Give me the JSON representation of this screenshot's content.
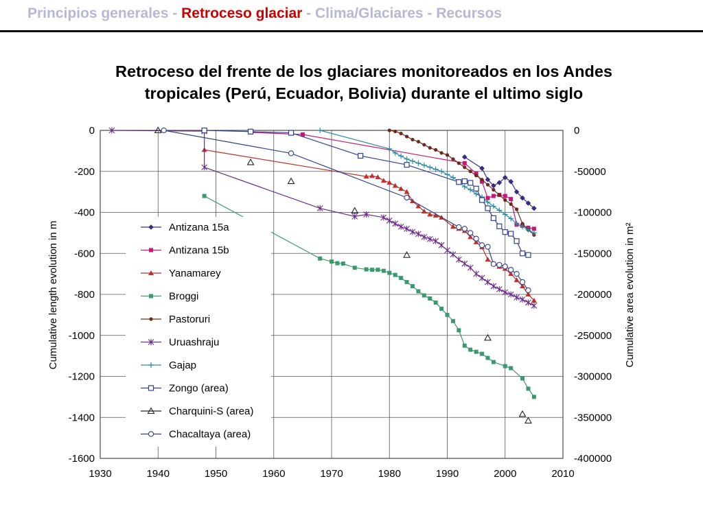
{
  "nav": {
    "item1": "Principios generales -",
    "item2": "Retroceso glaciar",
    "item3": " - Clima/Glaciares - Recursos"
  },
  "title_line1": "Retroceso del frente de los glaciares monitoreados en los Andes",
  "title_line2": "tropicales (Perú, Ecuador, Bolivia) durante  el ultimo siglo",
  "colors": {
    "nav_inactive": "#b7b7d6",
    "nav_active": "#cc0000",
    "antizana15a": "#3b2a82",
    "antizana15b": "#c8157b",
    "yanamarey": "#c0302a",
    "broggi": "#3a9a6e",
    "pastoruri": "#6b2a1a",
    "uruashraju": "#6a2a8a",
    "gajap": "#2a8aa0",
    "zongo": "#2e3f8f",
    "charquini": "#222222",
    "chacaltaya": "#2e3f8f"
  },
  "chart_data": {
    "type": "scatter",
    "xlabel": "",
    "ylabel_left": "Cumulative length evolution in m",
    "ylabel_right": "Cumulative area evolution in m²",
    "xlim": [
      1930,
      2010
    ],
    "ylim_left": [
      -1600,
      0
    ],
    "ylim_right": [
      -400000,
      0
    ],
    "x_ticks": [
      1930,
      1940,
      1950,
      1960,
      1970,
      1980,
      1990,
      2000,
      2010
    ],
    "y_ticks_left": [
      0,
      -200,
      -400,
      -600,
      -800,
      -1000,
      -1200,
      -1400,
      -1600
    ],
    "y_ticks_right": [
      "0",
      "-50000",
      "-100000",
      "-150000",
      "-200000",
      "-250000",
      "-300000",
      "-350000",
      "-400000"
    ],
    "legend_position": "left",
    "series": [
      {
        "name": "Antizana 15a",
        "axis": "left",
        "marker": "diamond",
        "line": true,
        "x": [
          1993,
          1996,
          1997,
          1998,
          1999,
          2000,
          2001,
          2002,
          2003,
          2004,
          2005
        ],
        "y": [
          -130,
          -185,
          -240,
          -270,
          -255,
          -230,
          -250,
          -300,
          -330,
          -355,
          -380
        ]
      },
      {
        "name": "Antizana 15b",
        "axis": "left",
        "marker": "square-filled",
        "line": true,
        "x": [
          1956,
          1965,
          1993,
          1995,
          1996,
          1997,
          1998,
          1999,
          2000,
          2001,
          2002,
          2003,
          2004,
          2005
        ],
        "y": [
          -10,
          -20,
          -160,
          -210,
          -250,
          -330,
          -320,
          -315,
          -320,
          -335,
          -460,
          -465,
          -475,
          -480
        ]
      },
      {
        "name": "Yanamarey",
        "axis": "left",
        "marker": "triangle-filled",
        "line": true,
        "x": [
          1948,
          1976,
          1977,
          1978,
          1979,
          1980,
          1981,
          1982,
          1983,
          1984,
          1985,
          1986,
          1987,
          1988,
          1989,
          1991,
          1992,
          1993,
          1994,
          1995,
          1996,
          1997,
          1998,
          1999,
          2000,
          2001,
          2002,
          2003,
          2004,
          2005
        ],
        "y": [
          -95,
          -225,
          -222,
          -228,
          -245,
          -255,
          -270,
          -285,
          -300,
          -345,
          -370,
          -395,
          -410,
          -415,
          -425,
          -470,
          -480,
          -490,
          -520,
          -545,
          -570,
          -630,
          -650,
          -665,
          -675,
          -700,
          -730,
          -760,
          -800,
          -830
        ]
      },
      {
        "name": "Broggi",
        "axis": "left",
        "marker": "square-filled",
        "line": true,
        "x": [
          1948,
          1968,
          1970,
          1971,
          1972,
          1974,
          1976,
          1977,
          1978,
          1979,
          1980,
          1981,
          1982,
          1983,
          1984,
          1985,
          1986,
          1987,
          1988,
          1989,
          1990,
          1991,
          1992,
          1993,
          1994,
          1995,
          1996,
          1997,
          1998,
          2000,
          2001,
          2003,
          2004,
          2005
        ],
        "y": [
          -320,
          -625,
          -640,
          -648,
          -650,
          -670,
          -678,
          -680,
          -680,
          -685,
          -695,
          -705,
          -720,
          -740,
          -760,
          -785,
          -805,
          -820,
          -840,
          -870,
          -900,
          -930,
          -975,
          -1050,
          -1070,
          -1080,
          -1090,
          -1110,
          -1130,
          -1150,
          -1160,
          -1210,
          -1260,
          -1300
        ]
      },
      {
        "name": "Pastoruri",
        "axis": "left",
        "marker": "circle-filled",
        "line": true,
        "x": [
          1980,
          1981,
          1982,
          1983,
          1984,
          1985,
          1986,
          1987,
          1988,
          1989,
          1990,
          1991,
          1992,
          1993,
          1994,
          1995,
          1996,
          1997,
          1998,
          1999,
          2000,
          2001,
          2002,
          2003,
          2004,
          2005
        ],
        "y": [
          0,
          -5,
          -15,
          -30,
          -45,
          -55,
          -70,
          -85,
          -95,
          -110,
          -120,
          -140,
          -160,
          -180,
          -200,
          -220,
          -240,
          -265,
          -290,
          -315,
          -340,
          -360,
          -385,
          -455,
          -485,
          -510
        ]
      },
      {
        "name": "Uruashraju",
        "axis": "left",
        "marker": "asterisk",
        "line": true,
        "x": [
          1932,
          1948,
          1948,
          1968,
          1974,
          1976,
          1979,
          1980,
          1981,
          1982,
          1983,
          1984,
          1985,
          1986,
          1987,
          1988,
          1989,
          1990,
          1991,
          1992,
          1993,
          1994,
          1995,
          1996,
          1997,
          1998,
          1999,
          2000,
          2001,
          2002,
          2003,
          2004,
          2005
        ],
        "y": [
          0,
          -4,
          -180,
          -380,
          -420,
          -410,
          -425,
          -440,
          -455,
          -470,
          -480,
          -495,
          -505,
          -520,
          -530,
          -540,
          -560,
          -585,
          -605,
          -630,
          -650,
          -670,
          -700,
          -720,
          -740,
          -760,
          -775,
          -790,
          -800,
          -815,
          -825,
          -840,
          -855
        ]
      },
      {
        "name": "Gajap",
        "axis": "left",
        "marker": "plus",
        "line": true,
        "x": [
          1968,
          1980,
          1981,
          1982,
          1983,
          1984,
          1985,
          1986,
          1987,
          1988,
          1989,
          1990,
          1991,
          1992,
          1993,
          1994,
          1995,
          1996,
          1997,
          1998,
          1999,
          2000,
          2001,
          2002,
          2003,
          2004,
          2005
        ],
        "y": [
          0,
          -90,
          -110,
          -125,
          -140,
          -150,
          -160,
          -170,
          -180,
          -190,
          -200,
          -215,
          -230,
          -250,
          -275,
          -290,
          -310,
          -325,
          -350,
          -370,
          -390,
          -410,
          -430,
          -455,
          -470,
          -485,
          -500
        ]
      },
      {
        "name": "Zongo (area)",
        "axis": "right",
        "marker": "square-open",
        "line": true,
        "x": [
          1948,
          1956,
          1963,
          1975,
          1983,
          1992,
          1993,
          1994,
          1995,
          1996,
          1997,
          1998,
          1999,
          2000,
          2001,
          2002,
          2003,
          2004
        ],
        "y": [
          0,
          -1500,
          -3000,
          -31000,
          -42000,
          -63000,
          -62000,
          -64000,
          -71000,
          -85000,
          -95000,
          -107000,
          -117000,
          -124000,
          -126000,
          -135000,
          -150000,
          -152000
        ]
      },
      {
        "name": "Charquini-S (area)",
        "axis": "right",
        "marker": "triangle-open",
        "line": false,
        "x": [
          1940,
          1956,
          1963,
          1974,
          1983,
          1997,
          2003,
          2004
        ],
        "y": [
          0,
          -39000,
          -62000,
          -98000,
          -152000,
          -253000,
          -346000,
          -354000
        ]
      },
      {
        "name": "Chacaltaya (area)",
        "axis": "right",
        "marker": "circle-open",
        "line": true,
        "x": [
          1941,
          1963,
          1983,
          1992,
          1993,
          1994,
          1995,
          1996,
          1997,
          1998,
          1999,
          2000,
          2001,
          2002,
          2003,
          2004
        ],
        "y": [
          0,
          -28000,
          -82000,
          -118000,
          -120000,
          -125000,
          -132000,
          -140000,
          -142000,
          -163000,
          -164000,
          -166000,
          -170000,
          -175000,
          -185000,
          -195000
        ]
      }
    ]
  }
}
